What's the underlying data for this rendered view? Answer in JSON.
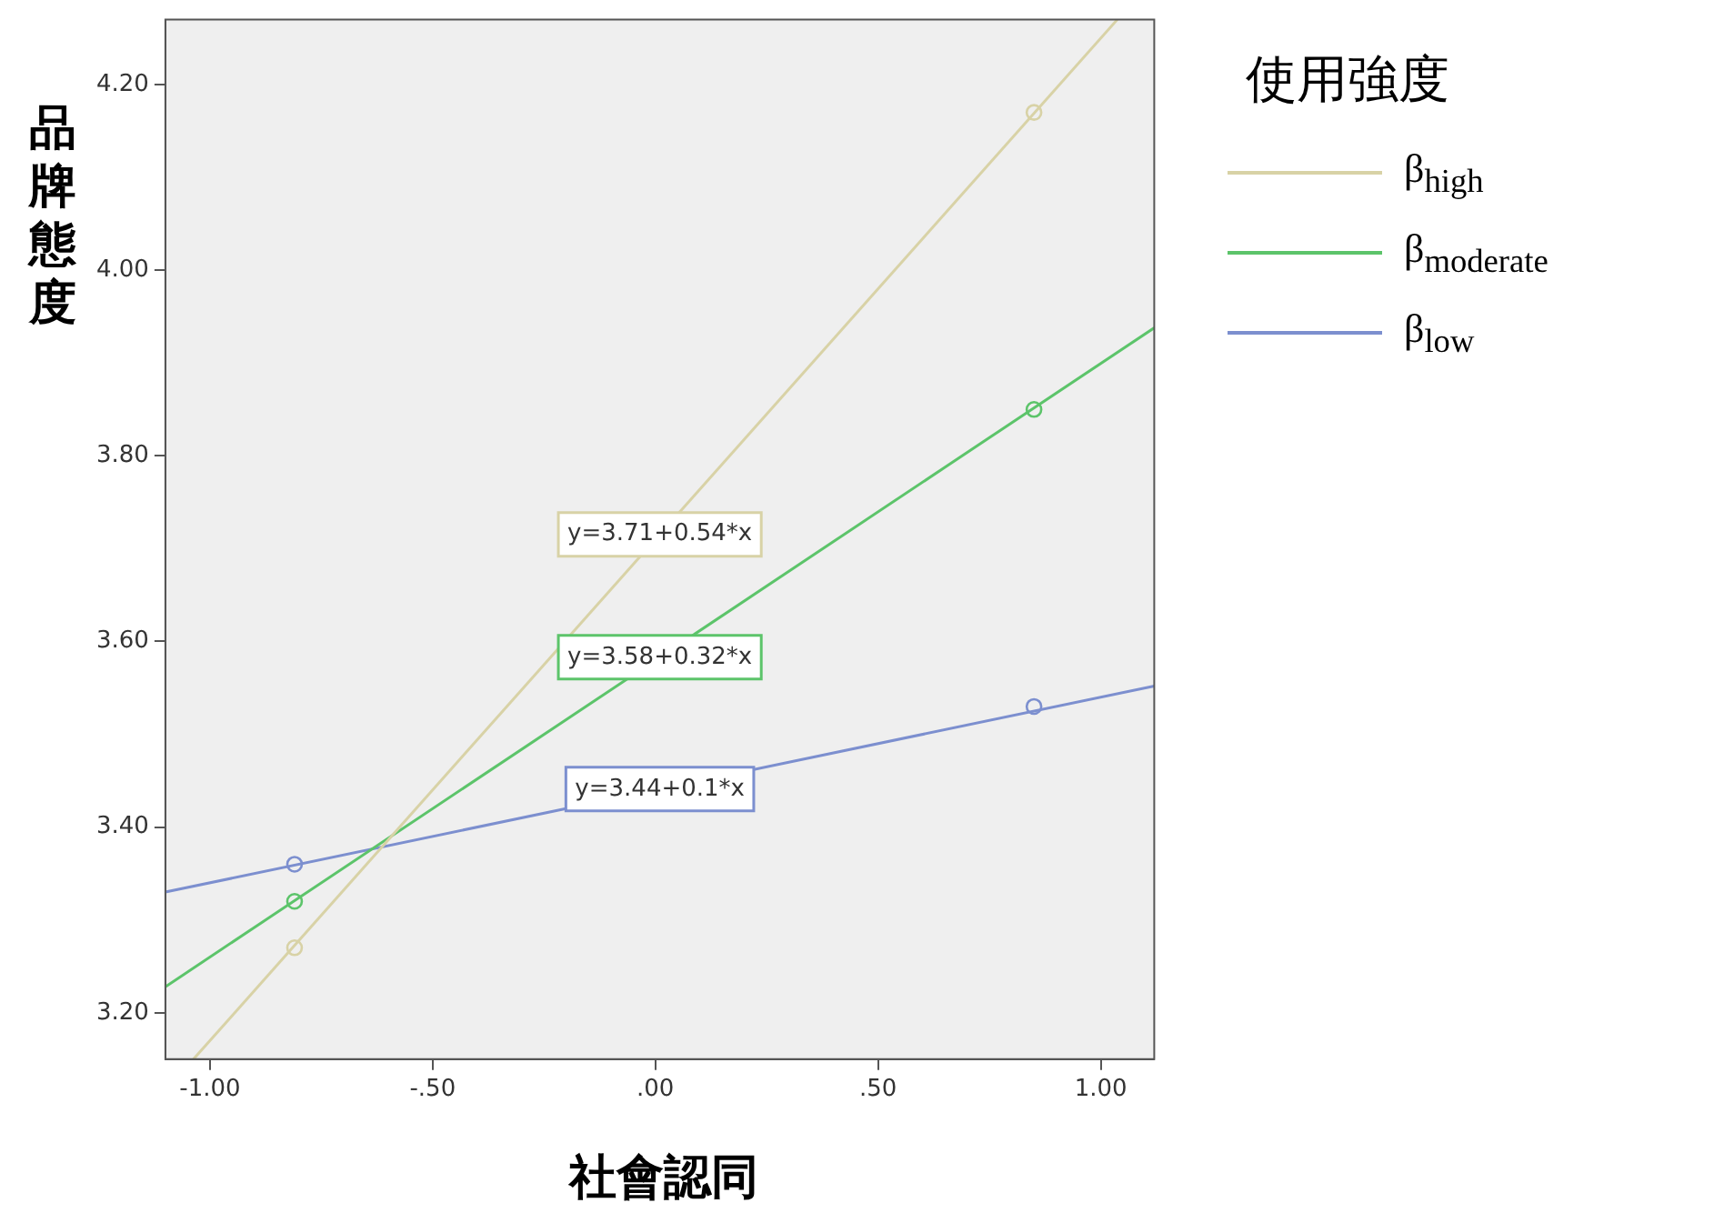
{
  "chart_data": {
    "type": "line",
    "xlabel": "社會認同",
    "ylabel": "品牌態度",
    "legend_title": "使用強度",
    "legend": "right",
    "grid": false,
    "marker": "none",
    "xlim": [
      -1.1,
      1.12
    ],
    "ylim": [
      3.15,
      4.27
    ],
    "xticks": [
      {
        "value": -1,
        "label": "-1.00"
      },
      {
        "value": -0.5,
        "label": "-.50"
      },
      {
        "value": 0,
        "label": ".00"
      },
      {
        "value": 0.5,
        "label": ".50"
      },
      {
        "value": 1,
        "label": "1.00"
      }
    ],
    "yticks": [
      {
        "value": 3.2,
        "label": "3.20"
      },
      {
        "value": 3.4,
        "label": "3.40"
      },
      {
        "value": 3.6,
        "label": "3.60"
      },
      {
        "value": 3.8,
        "label": "3.80"
      },
      {
        "value": 4.0,
        "label": "4.00"
      },
      {
        "value": 4.2,
        "label": "4.20"
      }
    ],
    "series": [
      {
        "name": "β$_{high}$",
        "color": "#d8d2a6",
        "x": [
          -1.037,
          1.037
        ],
        "values": [
          3.15,
          4.27
        ]
      },
      {
        "name": "β$_{moderate}$",
        "color": "#5cc46a",
        "x": [
          -1.1,
          1.12
        ],
        "values": [
          3.228,
          3.938
        ]
      },
      {
        "name": "β$_{low}$",
        "color": "#7c8fcf",
        "x": [
          -1.1,
          1.12
        ],
        "values": [
          3.33,
          3.552
        ]
      },
      {
        "type": "scatter",
        "marker": "circle",
        "color": "#d8d2a6",
        "x": [
          -0.81,
          0.85
        ],
        "values": [
          3.27,
          4.17
        ]
      },
      {
        "type": "scatter",
        "marker": "circle",
        "color": "#5cc46a",
        "x": [
          -0.81,
          0.85
        ],
        "values": [
          3.32,
          3.85
        ]
      },
      {
        "type": "scatter",
        "marker": "circle",
        "color": "#7c8fcf",
        "x": [
          -0.81,
          0.85
        ],
        "values": [
          3.36,
          3.53
        ]
      }
    ],
    "annotations": [
      "y=3.71+0.54*x",
      "y=3.58+0.32*x",
      "y=3.44+0.1*x"
    ]
  }
}
